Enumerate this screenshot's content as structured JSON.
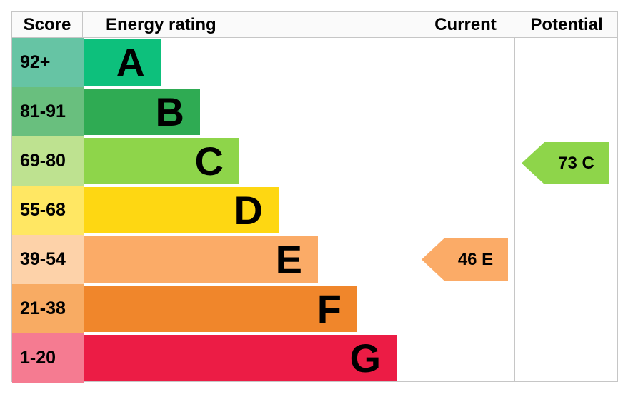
{
  "header": {
    "score": "Score",
    "rating": "Energy rating",
    "current": "Current",
    "potential": "Potential"
  },
  "bands": [
    {
      "letter": "A",
      "score_range": "92+",
      "score_bg": "#66c4a4",
      "bar_color": "#0dc07c"
    },
    {
      "letter": "B",
      "score_range": "81-91",
      "score_bg": "#69bf7e",
      "bar_color": "#2fab53"
    },
    {
      "letter": "C",
      "score_range": "69-80",
      "score_bg": "#bee290",
      "bar_color": "#8ed54a"
    },
    {
      "letter": "D",
      "score_range": "55-68",
      "score_bg": "#ffe763",
      "bar_color": "#fed712"
    },
    {
      "letter": "E",
      "score_range": "39-54",
      "score_bg": "#fdd2a9",
      "bar_color": "#fbab67"
    },
    {
      "letter": "F",
      "score_range": "21-38",
      "score_bg": "#f8ab63",
      "bar_color": "#f0862b"
    },
    {
      "letter": "G",
      "score_range": "1-20",
      "score_bg": "#f57b91",
      "bar_color": "#ec1c45"
    }
  ],
  "current_marker": {
    "label": "46 E",
    "value": 46,
    "band": "E",
    "color": "#fbab67"
  },
  "potential_marker": {
    "label": "73 C",
    "value": 73,
    "band": "C",
    "color": "#8ed54a"
  },
  "colors": {
    "table_border": "#c6c6c6",
    "header_bg": "#fafafa",
    "text": "#000000"
  },
  "chart_data": {
    "type": "bar",
    "title": "Energy rating",
    "orientation": "horizontal",
    "categories": [
      "A",
      "B",
      "C",
      "D",
      "E",
      "F",
      "G"
    ],
    "score_ranges": [
      "92+",
      "81-91",
      "69-80",
      "55-68",
      "39-54",
      "21-38",
      "1-20"
    ],
    "bar_lengths_relative": [
      1,
      2,
      3,
      4,
      5,
      6,
      7
    ],
    "band_colors": [
      "#0dc07c",
      "#2fab53",
      "#8ed54a",
      "#fed712",
      "#fbab67",
      "#f0862b",
      "#ec1c45"
    ],
    "columns": [
      "Score",
      "Energy rating",
      "Current",
      "Potential"
    ],
    "markers": [
      {
        "name": "Current",
        "value": 46,
        "band": "E",
        "color": "#fbab67"
      },
      {
        "name": "Potential",
        "value": 73,
        "band": "C",
        "color": "#8ed54a"
      }
    ],
    "legend_position": "none",
    "grid": "table-borders"
  }
}
